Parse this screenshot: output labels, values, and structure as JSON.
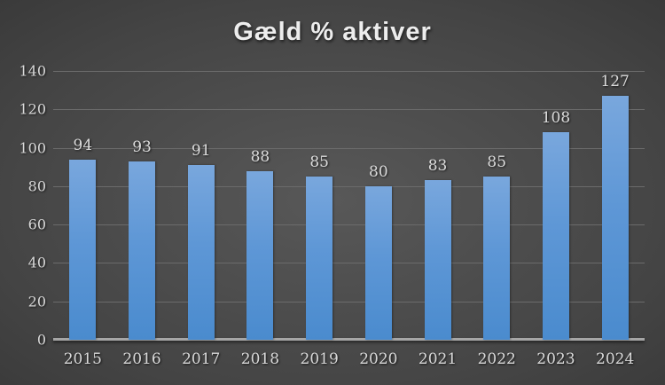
{
  "chart_data": {
    "type": "bar",
    "title": "Gæld % aktiver",
    "categories": [
      "2015",
      "2016",
      "2017",
      "2018",
      "2019",
      "2020",
      "2021",
      "2022",
      "2023",
      "2024"
    ],
    "values": [
      94,
      93,
      91,
      88,
      85,
      80,
      83,
      85,
      108,
      127
    ],
    "xlabel": "",
    "ylabel": "",
    "ylim": [
      0,
      140
    ],
    "yticks": [
      0,
      20,
      40,
      60,
      80,
      100,
      120,
      140
    ],
    "grid": true,
    "legend": "none",
    "data_labels": true,
    "colors": {
      "bar_top": "#79a7dd",
      "bar_bottom": "#4a8bce",
      "background_center": "#585858",
      "background_edge": "#242424",
      "gridline": "#6b6b6b",
      "axis_line": "#a6a6a6",
      "text": "#d9d9d9",
      "title_text": "#ededed"
    }
  }
}
